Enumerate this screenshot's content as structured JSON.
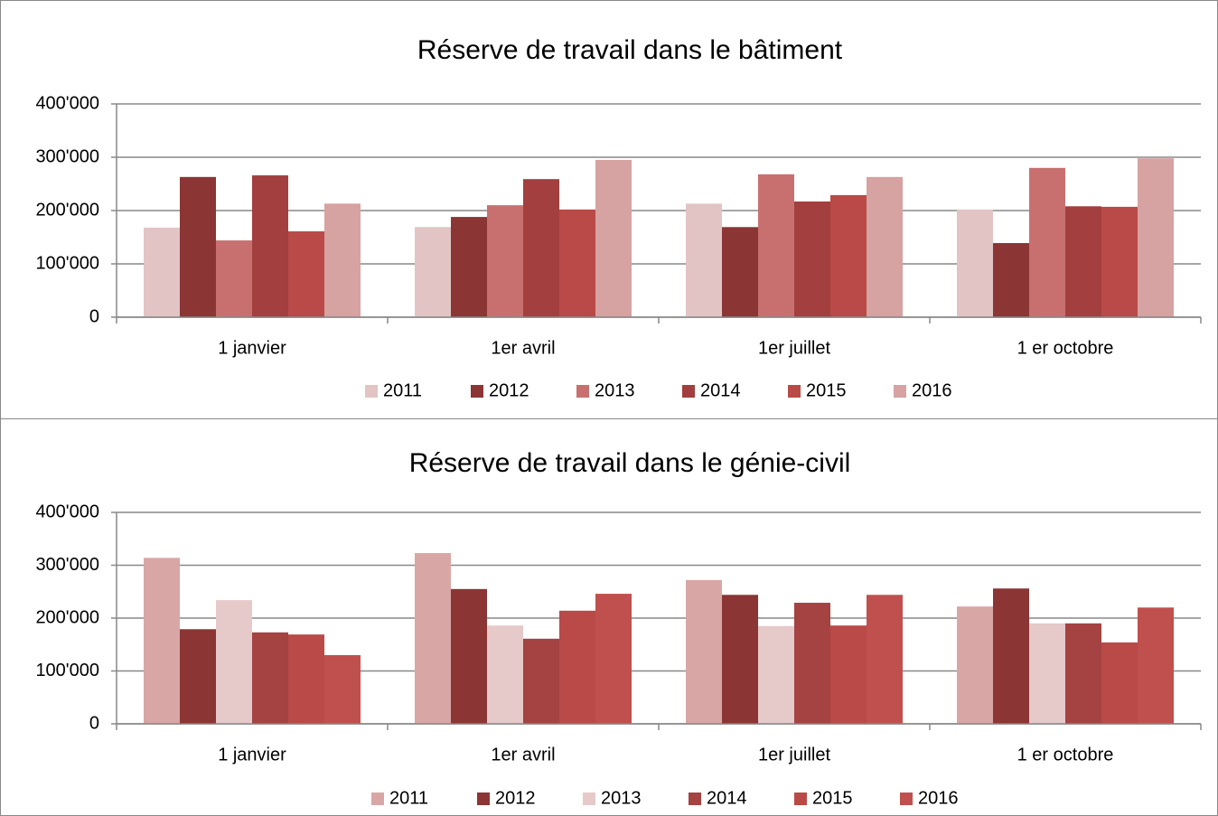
{
  "chart_data": [
    {
      "type": "bar",
      "title": "Réserve de travail dans le bâtiment",
      "categories": [
        "1 janvier",
        "1er avril",
        "1er juillet",
        "1 er octobre"
      ],
      "series": [
        {
          "name": "2011",
          "color": "#e2c4c4",
          "values": [
            168000,
            169000,
            213000,
            202000
          ]
        },
        {
          "name": "2012",
          "color": "#8b3535",
          "values": [
            263000,
            188000,
            169000,
            139000
          ]
        },
        {
          "name": "2013",
          "color": "#c87070",
          "values": [
            144000,
            210000,
            268000,
            280000
          ]
        },
        {
          "name": "2014",
          "color": "#a33f3f",
          "values": [
            266000,
            259000,
            217000,
            208000
          ]
        },
        {
          "name": "2015",
          "color": "#b94a48",
          "values": [
            161000,
            202000,
            229000,
            207000
          ]
        },
        {
          "name": "2016",
          "color": "#d6a2a2",
          "values": [
            213000,
            295000,
            263000,
            298000
          ]
        }
      ],
      "ylim": [
        0,
        400000
      ],
      "yticks": [
        0,
        {
          "value": 100000,
          "label": "100'000"
        },
        {
          "value": 200000,
          "label": "200'000"
        },
        {
          "value": 300000,
          "label": "300'000"
        },
        {
          "value": 400000,
          "label": "400'000"
        }
      ],
      "grid": true,
      "legend": "bottom"
    },
    {
      "type": "bar",
      "title": "Réserve de travail dans le génie-civil",
      "categories": [
        "1 janvier",
        "1er avril",
        "1er juillet",
        "1 er octobre"
      ],
      "series": [
        {
          "name": "2011",
          "color": "#d9a6a6",
          "values": [
            314000,
            323000,
            272000,
            222000
          ]
        },
        {
          "name": "2012",
          "color": "#8b3535",
          "values": [
            179000,
            255000,
            244000,
            256000
          ]
        },
        {
          "name": "2013",
          "color": "#e6c9c9",
          "values": [
            234000,
            186000,
            185000,
            190000
          ]
        },
        {
          "name": "2014",
          "color": "#a54242",
          "values": [
            173000,
            161000,
            229000,
            190000
          ]
        },
        {
          "name": "2015",
          "color": "#b94a48",
          "values": [
            169000,
            214000,
            186000,
            154000
          ]
        },
        {
          "name": "2016",
          "color": "#c0504d",
          "values": [
            130000,
            246000,
            244000,
            220000
          ]
        }
      ],
      "ylim": [
        0,
        400000
      ],
      "yticks": [
        0,
        {
          "value": 100000,
          "label": "100'000"
        },
        {
          "value": 200000,
          "label": "200'000"
        },
        {
          "value": 300000,
          "label": "300'000"
        },
        {
          "value": 400000,
          "label": "400'000"
        }
      ],
      "grid": true,
      "legend": "bottom"
    }
  ]
}
